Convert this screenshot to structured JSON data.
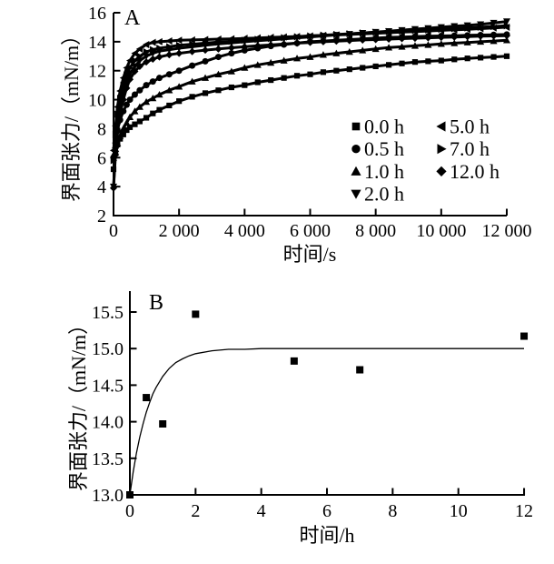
{
  "figure": {
    "background": "#ffffff",
    "ink": "#000000"
  },
  "chart_data": [
    {
      "id": "A",
      "type": "scatter",
      "panel_label": "A",
      "xlabel": "时间/s",
      "ylabel": "界面张力/（mN/m）",
      "xlim": [
        0,
        12000
      ],
      "ylim": [
        2,
        16
      ],
      "grid": false,
      "legend_position": "inside lower right",
      "xticks": [
        {
          "v": 0,
          "label": "0"
        },
        {
          "v": 2000,
          "label": "2 000"
        },
        {
          "v": 4000,
          "label": "4 000"
        },
        {
          "v": 6000,
          "label": "6 000"
        },
        {
          "v": 8000,
          "label": "8 000"
        },
        {
          "v": 10000,
          "label": "10 000"
        },
        {
          "v": 12000,
          "label": "12 000"
        }
      ],
      "yticks": [
        2,
        4,
        6,
        8,
        10,
        12,
        14,
        16
      ],
      "legend": {
        "columns": [
          [
            {
              "marker": "square",
              "label": "0.0 h"
            },
            {
              "marker": "circle",
              "label": "0.5 h"
            },
            {
              "marker": "triangle-up",
              "label": "1.0 h"
            },
            {
              "marker": "triangle-down",
              "label": "2.0 h"
            }
          ],
          [
            {
              "marker": "triangle-left",
              "label": "5.0 h"
            },
            {
              "marker": "triangle-right",
              "label": "7.0 h"
            },
            {
              "marker": "diamond",
              "label": "12.0 h"
            }
          ]
        ]
      },
      "t": [
        0,
        60,
        120,
        200,
        300,
        400,
        500,
        650,
        800,
        1000,
        1200,
        1400,
        1700,
        2000,
        2400,
        2800,
        3200,
        3600,
        4000,
        4400,
        4800,
        5200,
        5600,
        6000,
        6400,
        6800,
        7200,
        7600,
        8000,
        8400,
        8800,
        9200,
        9600,
        10000,
        10400,
        10800,
        11200,
        11600,
        12000
      ],
      "series": [
        {
          "name": "0.0 h",
          "marker": "square",
          "y": [
            5.2,
            6.3,
            6.9,
            7.3,
            7.6,
            7.9,
            8.1,
            8.3,
            8.5,
            8.75,
            9.05,
            9.3,
            9.6,
            9.9,
            10.2,
            10.45,
            10.65,
            10.85,
            11.0,
            11.2,
            11.35,
            11.5,
            11.65,
            11.75,
            11.9,
            12.0,
            12.1,
            12.2,
            12.3,
            12.4,
            12.5,
            12.6,
            12.65,
            12.7,
            12.78,
            12.85,
            12.9,
            12.95,
            13.0
          ]
        },
        {
          "name": "0.5 h",
          "marker": "circle",
          "y": [
            6.0,
            7.0,
            7.9,
            8.6,
            9.2,
            9.65,
            10.0,
            10.35,
            10.65,
            11.0,
            11.25,
            11.5,
            11.75,
            12.0,
            12.35,
            12.65,
            12.95,
            13.2,
            13.4,
            13.55,
            13.7,
            13.8,
            13.9,
            14.0,
            14.05,
            14.1,
            14.15,
            14.2,
            14.25,
            14.3,
            14.32,
            14.35,
            14.38,
            14.4,
            14.42,
            14.44,
            14.46,
            14.48,
            14.5
          ]
        },
        {
          "name": "1.0 h",
          "marker": "triangle-up",
          "y": [
            6.2,
            6.6,
            7.0,
            7.5,
            8.0,
            8.4,
            8.8,
            9.2,
            9.5,
            9.85,
            10.1,
            10.35,
            10.65,
            10.9,
            11.25,
            11.5,
            11.75,
            11.95,
            12.2,
            12.4,
            12.55,
            12.7,
            12.85,
            12.95,
            13.1,
            13.2,
            13.3,
            13.4,
            13.5,
            13.6,
            13.65,
            13.72,
            13.78,
            13.85,
            13.9,
            13.95,
            14.0,
            14.05,
            14.1
          ]
        },
        {
          "name": "2.0 h",
          "marker": "triangle-down",
          "y": [
            4.0,
            6.5,
            8.2,
            9.5,
            10.5,
            11.2,
            11.8,
            12.3,
            12.7,
            13.0,
            13.2,
            13.35,
            13.45,
            13.55,
            13.65,
            13.75,
            13.85,
            13.92,
            14.0,
            14.07,
            14.13,
            14.2,
            14.27,
            14.33,
            14.4,
            14.47,
            14.53,
            14.6,
            14.67,
            14.73,
            14.8,
            14.87,
            14.93,
            15.0,
            15.07,
            15.13,
            15.2,
            15.3,
            15.4
          ]
        },
        {
          "name": "5.0 h",
          "marker": "triangle-left",
          "y": [
            6.5,
            8.2,
            9.5,
            10.6,
            11.5,
            12.2,
            12.7,
            13.2,
            13.5,
            13.8,
            13.95,
            14.0,
            14.05,
            14.1,
            14.12,
            14.15,
            14.18,
            14.2,
            14.23,
            14.26,
            14.3,
            14.33,
            14.36,
            14.4,
            14.44,
            14.47,
            14.5,
            14.54,
            14.58,
            14.62,
            14.66,
            14.7,
            14.74,
            14.78,
            14.82,
            14.86,
            14.9,
            14.95,
            15.0
          ]
        },
        {
          "name": "7.0 h",
          "marker": "triangle-right",
          "y": [
            5.8,
            7.6,
            9.0,
            10.1,
            11.0,
            11.7,
            12.2,
            12.7,
            13.0,
            13.3,
            13.45,
            13.55,
            13.65,
            13.75,
            13.83,
            13.9,
            13.97,
            14.03,
            14.1,
            14.16,
            14.22,
            14.28,
            14.34,
            14.4,
            14.45,
            14.5,
            14.55,
            14.6,
            14.65,
            14.7,
            14.74,
            14.78,
            14.82,
            14.86,
            14.9,
            14.95,
            15.0,
            15.05,
            15.1
          ]
        },
        {
          "name": "12.0 h",
          "marker": "diamond",
          "y": [
            3.9,
            6.2,
            7.8,
            9.0,
            10.0,
            10.8,
            11.4,
            11.95,
            12.3,
            12.6,
            12.8,
            12.95,
            13.1,
            13.2,
            13.32,
            13.42,
            13.5,
            13.58,
            13.65,
            13.72,
            13.78,
            13.84,
            13.9,
            13.95,
            14.0,
            14.04,
            14.08,
            14.12,
            14.15,
            14.18,
            14.21,
            14.24,
            14.27,
            14.3,
            14.32,
            14.35,
            14.38,
            14.4,
            14.42
          ]
        }
      ]
    },
    {
      "id": "B",
      "type": "scatter",
      "panel_label": "B",
      "xlabel": "时间/h",
      "ylabel": "界面张力/（mN/m）",
      "xlim": [
        0,
        12
      ],
      "ylim": [
        13.0,
        15.5
      ],
      "grid": false,
      "marker": "square",
      "xticks": [
        0,
        2,
        4,
        6,
        8,
        10,
        12
      ],
      "yticks": [
        {
          "v": 13.0,
          "label": "13.0"
        },
        {
          "v": 13.5,
          "label": "13.5"
        },
        {
          "v": 14.0,
          "label": "14.0"
        },
        {
          "v": 14.5,
          "label": "14.5"
        },
        {
          "v": 15.0,
          "label": "15.0"
        },
        {
          "v": 15.5,
          "label": "15.5"
        }
      ],
      "points": [
        [
          0,
          13.0
        ],
        [
          0.5,
          14.33
        ],
        [
          1,
          13.97
        ],
        [
          2,
          15.47
        ],
        [
          5,
          14.83
        ],
        [
          7,
          14.71
        ],
        [
          12,
          15.17
        ]
      ],
      "fit_curve": {
        "x": [
          0,
          0.1,
          0.2,
          0.3,
          0.4,
          0.5,
          0.6,
          0.7,
          0.8,
          1.0,
          1.2,
          1.4,
          1.6,
          1.8,
          2.0,
          2.5,
          3.0,
          3.5,
          4.0,
          5.0,
          6.0,
          7.0,
          8.0,
          9.0,
          10.0,
          11.0,
          12.0
        ],
        "y": [
          13.0,
          13.31,
          13.57,
          13.79,
          13.97,
          14.13,
          14.26,
          14.38,
          14.47,
          14.62,
          14.73,
          14.81,
          14.86,
          14.9,
          14.93,
          14.97,
          14.99,
          14.99,
          15.0,
          15.0,
          15.0,
          15.0,
          15.0,
          15.0,
          15.0,
          15.0,
          15.0
        ]
      }
    }
  ]
}
